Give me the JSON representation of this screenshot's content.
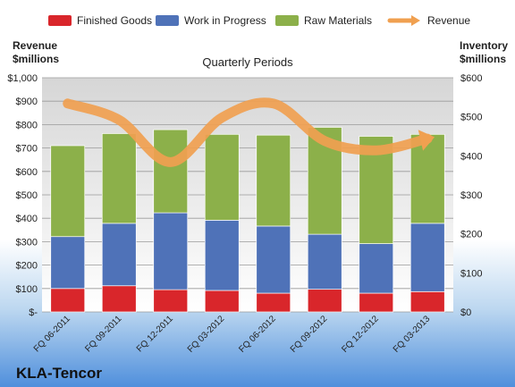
{
  "chart_data": {
    "type": "bar",
    "stacked": true,
    "company": "KLA-Tencor",
    "subtitle": "Quarterly Periods",
    "left_axis_title": [
      "Revenue",
      "$millions"
    ],
    "right_axis_title": [
      "Inventory",
      "$millions"
    ],
    "categories": [
      "FQ 06-2011",
      "FQ 09-2011",
      "FQ 12-2011",
      "FQ 03-2012",
      "FQ 06-2012",
      "FQ 09-2012",
      "FQ 12-2012",
      "FQ 03-2013"
    ],
    "series": [
      {
        "name": "Finished Goods",
        "axis": "right",
        "color": "#d9262b",
        "values": [
          60,
          67,
          57,
          55,
          48,
          58,
          48,
          52
        ]
      },
      {
        "name": "Work in Progress",
        "axis": "right",
        "color": "#4f72b8",
        "values": [
          133,
          160,
          197,
          180,
          172,
          141,
          127,
          175
        ]
      },
      {
        "name": "Raw Materials",
        "axis": "right",
        "color": "#8cb04a",
        "values": [
          233,
          230,
          213,
          220,
          233,
          274,
          275,
          228
        ]
      },
      {
        "name": "Revenue",
        "type": "line",
        "axis": "left",
        "color": "#f0a050",
        "values": [
          890,
          820,
          640,
          830,
          890,
          730,
          690,
          740
        ]
      }
    ],
    "left_axis": {
      "min": 0,
      "max": 1000,
      "step": 100,
      "tick_labels": [
        "$-",
        "$100",
        "$200",
        "$300",
        "$400",
        "$500",
        "$600",
        "$700",
        "$800",
        "$900",
        "$1,000"
      ]
    },
    "right_axis": {
      "min": 0,
      "max": 600,
      "step": 100,
      "tick_labels": [
        "$0",
        "$100",
        "$200",
        "$300",
        "$400",
        "$500",
        "$600"
      ]
    },
    "legend_position": "top",
    "grid": true
  }
}
